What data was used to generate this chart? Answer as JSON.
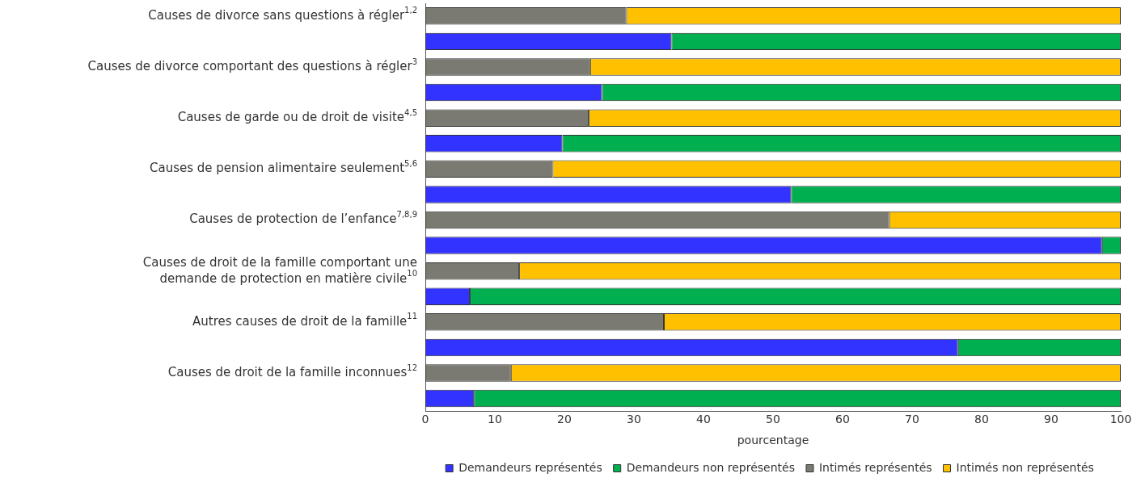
{
  "chart_data": {
    "type": "bar",
    "orientation": "horizontal",
    "stacked": true,
    "categories": [
      "Causes de divorce sans questions à régler$^{1,2}$",
      null,
      "Causes de divorce comportant des questions à régler$^{3}$",
      null,
      "Causes de garde ou de droit de visite$^{4,5}$",
      null,
      "Causes de pension alimentaire seulement$^{5,6}$",
      null,
      "Causes de protection de l’enfance$^{7,8,9}$",
      null,
      "Causes de droit de la famille comportant une\ndemande de protection en matière civile$^{10}$",
      null,
      "Autres causes de droit de la famille$^{11}$",
      null,
      "Causes de droit de la famille inconnues$^{12}$",
      null
    ],
    "series": [
      {
        "name": "Demandeurs représentés",
        "color": "#3333ff",
        "values": [
          null,
          35.4,
          null,
          25.4,
          null,
          19.7,
          null,
          52.6,
          null,
          97.3,
          null,
          6.4,
          null,
          76.6,
          null,
          7.0
        ]
      },
      {
        "name": "Demandeurs non représentés",
        "color": "#00b050",
        "values": [
          null,
          64.6,
          null,
          74.6,
          null,
          80.3,
          null,
          47.4,
          null,
          2.7,
          null,
          93.6,
          null,
          23.4,
          null,
          93.0
        ]
      },
      {
        "name": "Intimés représentés",
        "color": "#7a7a72",
        "values": [
          28.9,
          null,
          23.7,
          null,
          23.5,
          null,
          18.3,
          null,
          66.7,
          null,
          13.5,
          null,
          34.3,
          null,
          12.3,
          null
        ]
      },
      {
        "name": "Intimés non représentés",
        "color": "#ffc000",
        "values": [
          71.1,
          null,
          76.3,
          null,
          76.5,
          null,
          81.7,
          null,
          33.3,
          null,
          86.5,
          null,
          65.7,
          null,
          87.7,
          null
        ]
      }
    ],
    "xlim": [
      0,
      100
    ],
    "xticks": [
      0,
      10,
      20,
      30,
      40,
      50,
      60,
      70,
      80,
      90,
      100
    ],
    "xlabel": "pourcentage",
    "grid": false,
    "legend": "bottom"
  }
}
